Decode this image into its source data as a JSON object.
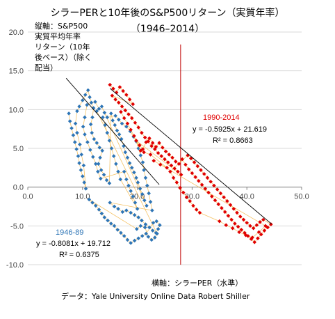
{
  "chart_data": {
    "type": "scatter",
    "title": "シラーPERと10年後のS&P500リターン（実質年率）",
    "subtitle": "（1946–2014）",
    "ylabel_lines": [
      "縦軸：S&P500",
      "実質平均年率",
      "リターン（10年",
      "後ベース）（除く",
      "配当）"
    ],
    "xlabel": "横軸：シラーPER（水準）",
    "source": "データ：Yale University Online Data Robert Shiller",
    "xlim": [
      0,
      50
    ],
    "ylim": [
      -10,
      20
    ],
    "x_ticks": [
      "0.0",
      "10.0",
      "20.0",
      "30.0",
      "40.0",
      "50.0"
    ],
    "y_ticks": [
      "20.0",
      "15.0",
      "10.0",
      "5.0",
      "0.0",
      "-5.0",
      "-10.0"
    ],
    "grid": "horizontal",
    "vertical_marker_x": 27.9,
    "series": [
      {
        "name": "1946-89",
        "color": "#2e75b6",
        "trendline": {
          "slope": -0.8081,
          "intercept": 19.712,
          "x_range": [
            7,
            24
          ]
        },
        "equation": "y = -0.8081x + 19.712",
        "r2": "R² = 0.6375",
        "points": [
          [
            7.5,
            9.5
          ],
          [
            7.7,
            8.5
          ],
          [
            8.0,
            7.6
          ],
          [
            8.3,
            6.7
          ],
          [
            8.6,
            5.8
          ],
          [
            8.9,
            4.9
          ],
          [
            9.2,
            4.0
          ],
          [
            9.4,
            3.1
          ],
          [
            9.7,
            2.2
          ],
          [
            10.0,
            1.4
          ],
          [
            10.3,
            0.6
          ],
          [
            10.6,
            -0.2
          ],
          [
            10.2,
            2.8
          ],
          [
            9.8,
            4.2
          ],
          [
            9.5,
            5.5
          ],
          [
            9.0,
            7.0
          ],
          [
            8.7,
            8.2
          ],
          [
            9.0,
            9.8
          ],
          [
            9.4,
            10.4
          ],
          [
            10.0,
            11.2
          ],
          [
            10.5,
            11.9
          ],
          [
            11.0,
            12.5
          ],
          [
            11.3,
            11.6
          ],
          [
            11.6,
            10.9
          ],
          [
            12.0,
            10.2
          ],
          [
            11.8,
            9.0
          ],
          [
            11.5,
            8.1
          ],
          [
            11.7,
            7.0
          ],
          [
            12.1,
            6.2
          ],
          [
            12.6,
            5.7
          ],
          [
            13.1,
            5.1
          ],
          [
            13.6,
            4.7
          ],
          [
            13.2,
            3.8
          ],
          [
            12.9,
            3.0
          ],
          [
            13.4,
            2.2
          ],
          [
            13.9,
            1.6
          ],
          [
            14.4,
            0.9
          ],
          [
            14.9,
            0.5
          ],
          [
            15.2,
            9.5
          ],
          [
            15.5,
            8.6
          ],
          [
            15.9,
            8.0
          ],
          [
            16.3,
            7.3
          ],
          [
            16.7,
            6.8
          ],
          [
            17.1,
            6.2
          ],
          [
            17.5,
            5.3
          ],
          [
            17.8,
            4.5
          ],
          [
            18.2,
            3.8
          ],
          [
            18.6,
            3.1
          ],
          [
            19.0,
            2.5
          ],
          [
            19.4,
            1.9
          ],
          [
            19.8,
            1.2
          ],
          [
            20.1,
            0.6
          ],
          [
            20.5,
            -0.2
          ],
          [
            20.9,
            -0.9
          ],
          [
            21.3,
            -1.7
          ],
          [
            21.7,
            -2.4
          ],
          [
            13.5,
            10.4
          ],
          [
            14.0,
            9.6
          ],
          [
            14.5,
            9.0
          ],
          [
            16.0,
            9.2
          ],
          [
            16.6,
            8.7
          ],
          [
            17.2,
            8.2
          ],
          [
            18.0,
            7.8
          ],
          [
            18.7,
            7.2
          ],
          [
            19.3,
            6.5
          ],
          [
            19.8,
            5.9
          ],
          [
            20.2,
            5.0
          ],
          [
            20.6,
            4.1
          ],
          [
            21.0,
            3.2
          ],
          [
            21.2,
            2.2
          ],
          [
            21.5,
            1.2
          ],
          [
            21.8,
            0.2
          ],
          [
            22.1,
            -0.8
          ],
          [
            22.4,
            -1.9
          ],
          [
            22.7,
            -3.0
          ],
          [
            15.0,
            -2.0
          ],
          [
            15.8,
            -2.5
          ],
          [
            16.5,
            -2.8
          ],
          [
            17.3,
            -3.2
          ],
          [
            18.0,
            -3.0
          ],
          [
            18.8,
            -3.3
          ],
          [
            19.5,
            -3.6
          ],
          [
            20.2,
            -3.9
          ],
          [
            20.8,
            -4.3
          ],
          [
            21.5,
            -4.8
          ],
          [
            22.2,
            -5.2
          ],
          [
            22.8,
            -5.6
          ],
          [
            23.4,
            -5.9
          ],
          [
            23.8,
            -5.4
          ],
          [
            24.1,
            -4.9
          ],
          [
            23.5,
            -4.4
          ],
          [
            22.9,
            -4.6
          ],
          [
            21.6,
            -6.0
          ],
          [
            20.9,
            -6.3
          ],
          [
            20.2,
            -6.6
          ],
          [
            19.5,
            -6.9
          ],
          [
            18.8,
            -7.2
          ],
          [
            18.2,
            -6.8
          ],
          [
            17.6,
            -6.3
          ],
          [
            17.0,
            -5.9
          ],
          [
            16.4,
            -5.5
          ],
          [
            15.8,
            -5.0
          ],
          [
            15.2,
            -4.7
          ],
          [
            14.6,
            -4.3
          ],
          [
            14.0,
            -3.9
          ],
          [
            13.5,
            -3.4
          ],
          [
            13.0,
            -2.9
          ],
          [
            12.4,
            -2.4
          ],
          [
            11.8,
            -2.0
          ],
          [
            11.2,
            -1.6
          ],
          [
            19.9,
            -5.4
          ],
          [
            20.6,
            -5.0
          ],
          [
            21.4,
            -5.2
          ],
          [
            22.0,
            -6.4
          ],
          [
            22.6,
            -6.8
          ],
          [
            23.2,
            -6.5
          ],
          [
            23.6,
            -6.0
          ],
          [
            12.6,
            9.8
          ],
          [
            13.0,
            10.1
          ],
          [
            12.3,
            11.0
          ],
          [
            10.8,
            10.6
          ],
          [
            10.4,
            9.0
          ],
          [
            10.1,
            7.8
          ],
          [
            10.4,
            6.8
          ],
          [
            10.9,
            5.8
          ],
          [
            11.4,
            4.8
          ],
          [
            11.9,
            3.9
          ],
          [
            12.4,
            3.0
          ],
          [
            12.8,
            2.0
          ],
          [
            13.3,
            1.1
          ],
          [
            17.6,
            2.0
          ],
          [
            18.0,
            1.0
          ],
          [
            18.4,
            0.2
          ],
          [
            18.8,
            -0.5
          ],
          [
            19.2,
            -1.2
          ],
          [
            19.6,
            -2.0
          ],
          [
            20.0,
            -2.8
          ],
          [
            16.9,
            1.0
          ],
          [
            16.5,
            2.0
          ],
          [
            16.1,
            3.0
          ],
          [
            15.7,
            4.0
          ],
          [
            15.3,
            5.0
          ],
          [
            14.9,
            6.0
          ],
          [
            14.5,
            7.0
          ],
          [
            14.1,
            8.0
          ],
          [
            13.7,
            9.0
          ]
        ]
      },
      {
        "name": "1990-2014",
        "color": "#e00000",
        "trendline": {
          "slope": -0.5925,
          "intercept": 21.619,
          "x_range": [
            15,
            44.5
          ]
        },
        "equation": "y = -0.5925x + 21.619",
        "r2": "R² = 0.8663",
        "points": [
          [
            15.0,
            13.2
          ],
          [
            15.6,
            12.7
          ],
          [
            16.2,
            12.2
          ],
          [
            16.8,
            12.9
          ],
          [
            17.4,
            12.4
          ],
          [
            18.0,
            11.9
          ],
          [
            18.6,
            11.3
          ],
          [
            19.2,
            10.7
          ],
          [
            15.4,
            11.8
          ],
          [
            16.0,
            11.3
          ],
          [
            16.6,
            10.9
          ],
          [
            17.2,
            10.4
          ],
          [
            17.8,
            9.9
          ],
          [
            18.4,
            9.4
          ],
          [
            19.0,
            8.9
          ],
          [
            19.6,
            8.3
          ],
          [
            20.2,
            7.7
          ],
          [
            20.8,
            7.0
          ],
          [
            21.4,
            6.4
          ],
          [
            22.0,
            5.9
          ],
          [
            22.6,
            5.3
          ],
          [
            23.2,
            4.9
          ],
          [
            23.8,
            4.4
          ],
          [
            24.4,
            4.0
          ],
          [
            25.0,
            3.6
          ],
          [
            25.6,
            3.2
          ],
          [
            26.2,
            2.8
          ],
          [
            26.8,
            2.4
          ],
          [
            27.4,
            2.0
          ],
          [
            28.0,
            1.6
          ],
          [
            19.8,
            6.0
          ],
          [
            20.4,
            5.4
          ],
          [
            21.0,
            4.9
          ],
          [
            21.6,
            5.8
          ],
          [
            22.2,
            6.3
          ],
          [
            22.8,
            5.7
          ],
          [
            23.4,
            5.2
          ],
          [
            24.0,
            5.7
          ],
          [
            24.6,
            5.1
          ],
          [
            25.2,
            4.6
          ],
          [
            25.8,
            4.2
          ],
          [
            26.4,
            3.8
          ],
          [
            27.0,
            3.3
          ],
          [
            27.6,
            3.0
          ],
          [
            28.2,
            3.6
          ],
          [
            28.8,
            2.9
          ],
          [
            29.4,
            2.3
          ],
          [
            30.0,
            1.8
          ],
          [
            30.6,
            1.3
          ],
          [
            31.2,
            0.8
          ],
          [
            31.8,
            0.3
          ],
          [
            32.4,
            -0.2
          ],
          [
            33.0,
            -0.7
          ],
          [
            33.6,
            -1.2
          ],
          [
            34.2,
            -1.7
          ],
          [
            34.8,
            -2.2
          ],
          [
            35.4,
            -2.7
          ],
          [
            36.0,
            -3.2
          ],
          [
            36.6,
            -3.7
          ],
          [
            37.2,
            -4.2
          ],
          [
            37.8,
            -4.7
          ],
          [
            38.4,
            -5.1
          ],
          [
            39.0,
            -5.5
          ],
          [
            39.6,
            -5.9
          ],
          [
            40.2,
            -6.3
          ],
          [
            40.8,
            -6.7
          ],
          [
            41.4,
            -7.1
          ],
          [
            42.0,
            -6.6
          ],
          [
            42.6,
            -6.1
          ],
          [
            43.2,
            -5.6
          ],
          [
            43.8,
            -5.2
          ],
          [
            44.4,
            -4.8
          ],
          [
            43.0,
            -4.2
          ],
          [
            42.4,
            -4.5
          ],
          [
            41.8,
            -4.9
          ],
          [
            41.2,
            -5.3
          ],
          [
            40.6,
            -5.0
          ],
          [
            40.0,
            -4.6
          ],
          [
            39.4,
            -4.2
          ],
          [
            38.8,
            -3.8
          ],
          [
            38.2,
            -3.3
          ],
          [
            37.6,
            -2.8
          ],
          [
            37.0,
            -2.3
          ],
          [
            36.4,
            -1.8
          ],
          [
            35.8,
            -1.3
          ],
          [
            35.2,
            -0.8
          ],
          [
            34.6,
            -0.3
          ],
          [
            34.0,
            0.2
          ],
          [
            33.4,
            0.7
          ],
          [
            32.8,
            1.2
          ],
          [
            32.2,
            1.7
          ],
          [
            31.6,
            2.2
          ],
          [
            31.0,
            2.7
          ],
          [
            30.4,
            3.2
          ],
          [
            29.8,
            3.7
          ],
          [
            29.2,
            4.1
          ],
          [
            26.0,
            2.0
          ],
          [
            26.6,
            1.2
          ],
          [
            27.2,
            0.6
          ],
          [
            27.8,
            -0.1
          ],
          [
            28.4,
            -0.7
          ],
          [
            29.0,
            -1.3
          ],
          [
            29.6,
            -1.8
          ],
          [
            30.2,
            -2.4
          ],
          [
            30.8,
            -2.9
          ],
          [
            31.4,
            -3.3
          ],
          [
            35.0,
            -4.4
          ],
          [
            36.2,
            -4.9
          ],
          [
            37.4,
            -5.3
          ],
          [
            38.6,
            -5.8
          ],
          [
            39.8,
            -6.2
          ],
          [
            41.0,
            -6.5
          ],
          [
            42.2,
            -5.8
          ],
          [
            43.4,
            -5.0
          ],
          [
            23.0,
            3.4
          ],
          [
            24.2,
            2.9
          ],
          [
            25.4,
            2.5
          ],
          [
            22.4,
            4.2
          ],
          [
            21.2,
            4.5
          ],
          [
            20.6,
            4.7
          ],
          [
            19.4,
            6.6
          ],
          [
            18.8,
            7.4
          ],
          [
            18.2,
            8.2
          ],
          [
            17.6,
            8.9
          ],
          [
            17.0,
            9.7
          ]
        ]
      }
    ],
    "annotations": {
      "blue_label": "1946-89",
      "red_label": "1990-2014"
    }
  }
}
